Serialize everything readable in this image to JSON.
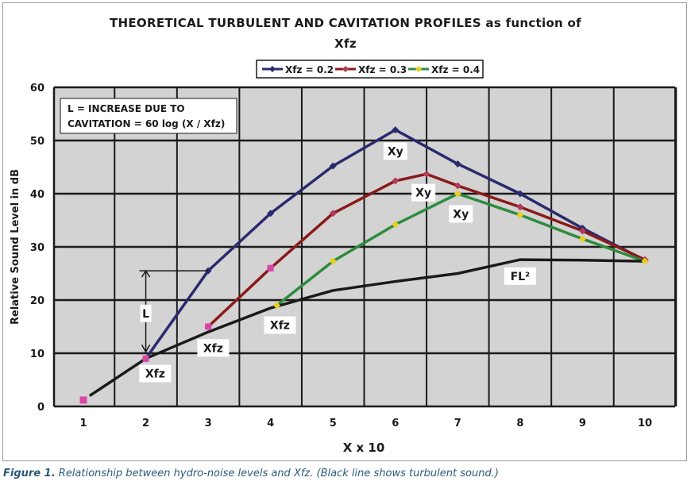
{
  "chart_data": {
    "type": "line",
    "title_line1": "THEORETICAL TURBULENT AND CAVITATION PROFILES as function of",
    "title_line2": "Xfz",
    "xlabel": "X x 10",
    "ylabel": "Relative Sound Level in dB",
    "xlim": [
      1,
      10
    ],
    "ylim": [
      0,
      60
    ],
    "x_ticks": [
      "1",
      "2",
      "3",
      "4",
      "5",
      "6",
      "7",
      "8",
      "9",
      "10"
    ],
    "y_ticks": [
      "0",
      "10",
      "20",
      "30",
      "40",
      "50",
      "60"
    ],
    "grid": true,
    "legend_position": "top-center",
    "series": [
      {
        "name": "Xfz = 0.2",
        "color": "#2a2a6e",
        "marker": "#2a2a6e",
        "x": [
          2,
          3,
          4,
          5,
          6,
          7,
          8,
          9,
          10
        ],
        "y": [
          9,
          25.5,
          36.3,
          45.2,
          52,
          45.6,
          40,
          33.5,
          27.5
        ]
      },
      {
        "name": "Xfz = 0.3",
        "color": "#8b1a1a",
        "marker": "#b03a5a",
        "x": [
          3,
          4,
          5,
          6,
          6.5,
          7,
          8,
          9,
          10
        ],
        "y": [
          15,
          26,
          36.3,
          42.4,
          43.7,
          41.5,
          37.5,
          33,
          27.6
        ]
      },
      {
        "name": "Xfz = 0.4",
        "color": "#2e8b3e",
        "marker": "#e6d020",
        "x": [
          4.1,
          5,
          6,
          7,
          8,
          9,
          10
        ],
        "y": [
          19,
          27.3,
          34.2,
          40,
          36,
          31.5,
          27.3
        ]
      },
      {
        "name": "",
        "color": "#1a1a1a",
        "marker": "#d946a8",
        "x": [
          1.1,
          2,
          3,
          4,
          5,
          6,
          7,
          8,
          9,
          10
        ],
        "y": [
          2,
          9,
          14,
          18.5,
          21.8,
          23.5,
          25,
          27.6,
          27.5,
          27.3
        ]
      }
    ],
    "marker_point": {
      "x": 1,
      "y": 1.2,
      "color": "#d946a8"
    },
    "annotation_box": {
      "line1": "L = INCREASE DUE TO",
      "line2": "CAVITATION = 60 log (X / Xfz)"
    },
    "labels": [
      {
        "text": "Xfz",
        "x": 2.15,
        "y": 6.2
      },
      {
        "text": "Xfz",
        "x": 3.08,
        "y": 11
      },
      {
        "text": "Xfz",
        "x": 4.15,
        "y": 15.3
      },
      {
        "text": "Xy",
        "x": 6.0,
        "y": 48
      },
      {
        "text": "Xy",
        "x": 6.45,
        "y": 40.2
      },
      {
        "text": "Xy",
        "x": 7.05,
        "y": 36.2
      },
      {
        "text": "FL²",
        "x": 8.0,
        "y": 24.5
      },
      {
        "text": "L",
        "x": 2.0,
        "y": 17.5
      }
    ],
    "l_bracket": {
      "x": 2.0,
      "y_top": 25.5,
      "y_bottom": 9.5,
      "cap_x_end": 3.0
    }
  },
  "caption": {
    "label": "Figure 1.",
    "text": "Relationship between hydro-noise levels and Xfz. (Black line shows turbulent sound.)"
  },
  "colors": {
    "plot_bg": "#d3d3d3",
    "grid": "#1a1a1a"
  }
}
